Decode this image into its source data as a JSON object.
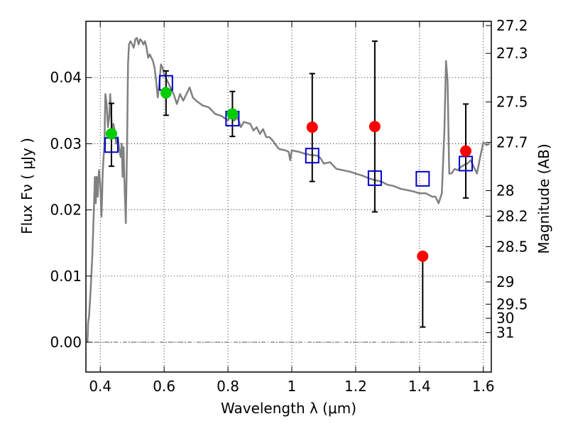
{
  "chart_data": {
    "type": "scatter",
    "title": "",
    "xlabel": "Wavelength  λ (μm)",
    "ylabel": "Flux  Fν ( μJy )",
    "ylabel_right": "Magnitude (AB)",
    "xlim": [
      0.355,
      1.625
    ],
    "ylim": [
      -0.0045,
      0.0485
    ],
    "x_ticks": [
      0.4,
      0.6,
      0.8,
      1.0,
      1.2,
      1.4,
      1.6
    ],
    "x_tick_labels": [
      "0.4",
      "0.6",
      "0.8",
      "1",
      "1.2",
      "1.4",
      "1.6"
    ],
    "y_ticks": [
      0.0,
      0.01,
      0.02,
      0.03,
      0.04
    ],
    "y_tick_labels": [
      "0.00",
      "0.01",
      "0.02",
      "0.03",
      "0.04"
    ],
    "mag_ticks": [
      27.2,
      27.3,
      27.5,
      27.7,
      28,
      28.2,
      28.5,
      29,
      29.5,
      30,
      31
    ],
    "mag_tick_labels": [
      "27.2",
      "27.3",
      "27.5",
      "27.7",
      "28",
      "28.2",
      "28.5",
      "29",
      "29.5",
      "30",
      "31"
    ],
    "grid": true,
    "colors": {
      "model": "#808080",
      "green": "#00cc00",
      "red": "#ff0000",
      "model_box": "#0000cc",
      "errorbar": "#000000",
      "zero_line": "#555555"
    },
    "series": [
      {
        "kind": "line",
        "points": [
          [
            0.36,
            0.0
          ],
          [
            0.362,
            0.003
          ],
          [
            0.365,
            0.004
          ],
          [
            0.37,
            0.008
          ],
          [
            0.375,
            0.013
          ],
          [
            0.38,
            0.02
          ],
          [
            0.383,
            0.025
          ],
          [
            0.386,
            0.021
          ],
          [
            0.389,
            0.025
          ],
          [
            0.392,
            0.022
          ],
          [
            0.396,
            0.026
          ],
          [
            0.4,
            0.024
          ],
          [
            0.404,
            0.019
          ],
          [
            0.408,
            0.026
          ],
          [
            0.413,
            0.03
          ],
          [
            0.416,
            0.0375
          ],
          [
            0.42,
            0.036
          ],
          [
            0.424,
            0.0325
          ],
          [
            0.428,
            0.034
          ],
          [
            0.431,
            0.0375
          ],
          [
            0.434,
            0.035
          ],
          [
            0.437,
            0.031
          ],
          [
            0.441,
            0.033
          ],
          [
            0.445,
            0.032
          ],
          [
            0.45,
            0.03
          ],
          [
            0.455,
            0.031
          ],
          [
            0.46,
            0.029
          ],
          [
            0.464,
            0.028
          ],
          [
            0.467,
            0.03
          ],
          [
            0.47,
            0.025
          ],
          [
            0.473,
            0.0295
          ],
          [
            0.475,
            0.025
          ],
          [
            0.478,
            0.021
          ],
          [
            0.48,
            0.018
          ],
          [
            0.484,
            0.03
          ],
          [
            0.487,
            0.042
          ],
          [
            0.49,
            0.045
          ],
          [
            0.495,
            0.0455
          ],
          [
            0.5,
            0.045
          ],
          [
            0.505,
            0.0445
          ],
          [
            0.51,
            0.0458
          ],
          [
            0.515,
            0.046
          ],
          [
            0.52,
            0.045
          ],
          [
            0.525,
            0.0458
          ],
          [
            0.53,
            0.0455
          ],
          [
            0.535,
            0.045
          ],
          [
            0.54,
            0.0455
          ],
          [
            0.545,
            0.0445
          ],
          [
            0.55,
            0.043
          ],
          [
            0.555,
            0.0435
          ],
          [
            0.56,
            0.043
          ],
          [
            0.565,
            0.0425
          ],
          [
            0.57,
            0.0415
          ],
          [
            0.575,
            0.0395
          ],
          [
            0.58,
            0.037
          ],
          [
            0.585,
            0.039
          ],
          [
            0.59,
            0.042
          ],
          [
            0.595,
            0.0415
          ],
          [
            0.6,
            0.0405
          ],
          [
            0.61,
            0.0395
          ],
          [
            0.62,
            0.0385
          ],
          [
            0.63,
            0.0375
          ],
          [
            0.64,
            0.036
          ],
          [
            0.65,
            0.0375
          ],
          [
            0.66,
            0.0365
          ],
          [
            0.67,
            0.0375
          ],
          [
            0.68,
            0.0385
          ],
          [
            0.69,
            0.037
          ],
          [
            0.7,
            0.0365
          ],
          [
            0.72,
            0.0358
          ],
          [
            0.74,
            0.0355
          ],
          [
            0.75,
            0.035
          ],
          [
            0.76,
            0.0345
          ],
          [
            0.78,
            0.0342
          ],
          [
            0.8,
            0.0335
          ],
          [
            0.81,
            0.0345
          ],
          [
            0.82,
            0.0335
          ],
          [
            0.83,
            0.034
          ],
          [
            0.84,
            0.0325
          ],
          [
            0.85,
            0.0333
          ],
          [
            0.87,
            0.033
          ],
          [
            0.88,
            0.032
          ],
          [
            0.89,
            0.0325
          ],
          [
            0.9,
            0.0315
          ],
          [
            0.91,
            0.0322
          ],
          [
            0.92,
            0.031
          ],
          [
            0.93,
            0.031
          ],
          [
            0.94,
            0.0305
          ],
          [
            0.95,
            0.0298
          ],
          [
            0.96,
            0.0292
          ],
          [
            0.98,
            0.029
          ],
          [
            0.99,
            0.0288
          ],
          [
            0.995,
            0.0275
          ],
          [
            1.0,
            0.029
          ],
          [
            1.02,
            0.0288
          ],
          [
            1.04,
            0.0285
          ],
          [
            1.06,
            0.0283
          ],
          [
            1.08,
            0.0282
          ],
          [
            1.09,
            0.0278
          ],
          [
            1.1,
            0.027
          ],
          [
            1.12,
            0.0272
          ],
          [
            1.14,
            0.0262
          ],
          [
            1.16,
            0.026
          ],
          [
            1.18,
            0.0258
          ],
          [
            1.2,
            0.0255
          ],
          [
            1.22,
            0.0252
          ],
          [
            1.24,
            0.0248
          ],
          [
            1.26,
            0.0245
          ],
          [
            1.28,
            0.0243
          ],
          [
            1.3,
            0.0238
          ],
          [
            1.32,
            0.0236
          ],
          [
            1.34,
            0.0232
          ],
          [
            1.36,
            0.023
          ],
          [
            1.38,
            0.0228
          ],
          [
            1.4,
            0.0225
          ],
          [
            1.42,
            0.0225
          ],
          [
            1.44,
            0.022
          ],
          [
            1.45,
            0.022
          ],
          [
            1.46,
            0.021
          ],
          [
            1.47,
            0.0225
          ],
          [
            1.478,
            0.032
          ],
          [
            1.483,
            0.0425
          ],
          [
            1.488,
            0.0395
          ],
          [
            1.493,
            0.0255
          ],
          [
            1.5,
            0.0255
          ],
          [
            1.51,
            0.0262
          ],
          [
            1.52,
            0.026
          ],
          [
            1.53,
            0.0265
          ],
          [
            1.54,
            0.0268
          ],
          [
            1.55,
            0.027
          ],
          [
            1.56,
            0.0275
          ],
          [
            1.57,
            0.0265
          ],
          [
            1.58,
            0.0255
          ],
          [
            1.59,
            0.028
          ],
          [
            1.6,
            0.0302
          ],
          [
            1.61,
            0.0298
          ],
          [
            1.62,
            0.03
          ]
        ]
      },
      {
        "kind": "model_boxes",
        "x": [
          0.435,
          0.606,
          0.814,
          1.064,
          1.26,
          1.41,
          1.545
        ],
        "y": [
          0.0298,
          0.0392,
          0.0338,
          0.0282,
          0.0248,
          0.0247,
          0.027
        ]
      },
      {
        "kind": "green_points",
        "x": [
          0.435,
          0.606,
          0.814
        ],
        "y": [
          0.0315,
          0.0377,
          0.0345
        ],
        "yerr_low": [
          0.0266,
          0.0343,
          0.0311
        ],
        "yerr_high": [
          0.0361,
          0.041,
          0.0379
        ]
      },
      {
        "kind": "red_points",
        "x": [
          1.064,
          1.26,
          1.41,
          1.545
        ],
        "y": [
          0.0325,
          0.0326,
          0.013,
          0.0289
        ],
        "yerr_low": [
          0.0243,
          0.0197,
          0.0023,
          0.0218
        ],
        "yerr_high": [
          0.0406,
          0.0455,
          null,
          0.036
        ]
      }
    ]
  }
}
